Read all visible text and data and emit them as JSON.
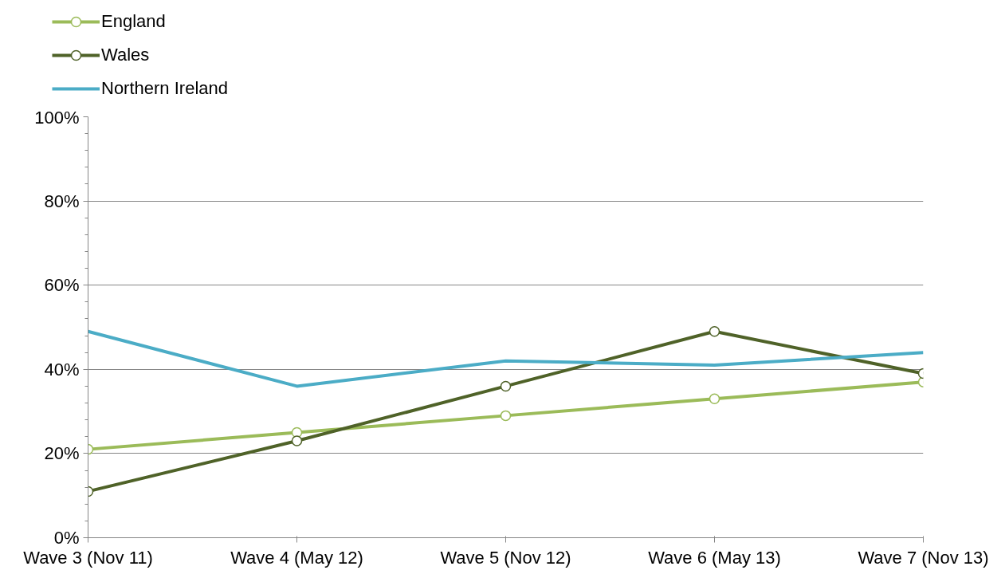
{
  "chart_data": {
    "type": "line",
    "categories": [
      "Wave 3 (Nov 11)",
      "Wave 4 (May 12)",
      "Wave 5 (Nov 12)",
      "Wave 6 (May 13)",
      "Wave 7 (Nov 13)"
    ],
    "series": [
      {
        "name": "England",
        "color": "#9bbb59",
        "values": [
          21,
          25,
          29,
          33,
          37
        ],
        "marker": "circle"
      },
      {
        "name": "Wales",
        "color": "#4f6228",
        "values": [
          11,
          23,
          36,
          49,
          39
        ],
        "marker": "circle"
      },
      {
        "name": "Northern Ireland",
        "color": "#4bacc6",
        "values": [
          49,
          36,
          42,
          41,
          44
        ],
        "marker": "none"
      }
    ],
    "ylim": [
      0,
      100
    ],
    "yticks": [
      {
        "value": 0,
        "label": "0%"
      },
      {
        "value": 20,
        "label": "20%"
      },
      {
        "value": 40,
        "label": "40%"
      },
      {
        "value": 60,
        "label": "60%"
      },
      {
        "value": 80,
        "label": "80%"
      },
      {
        "value": 100,
        "label": "100%"
      }
    ],
    "grid": "y",
    "legend": "top left"
  }
}
